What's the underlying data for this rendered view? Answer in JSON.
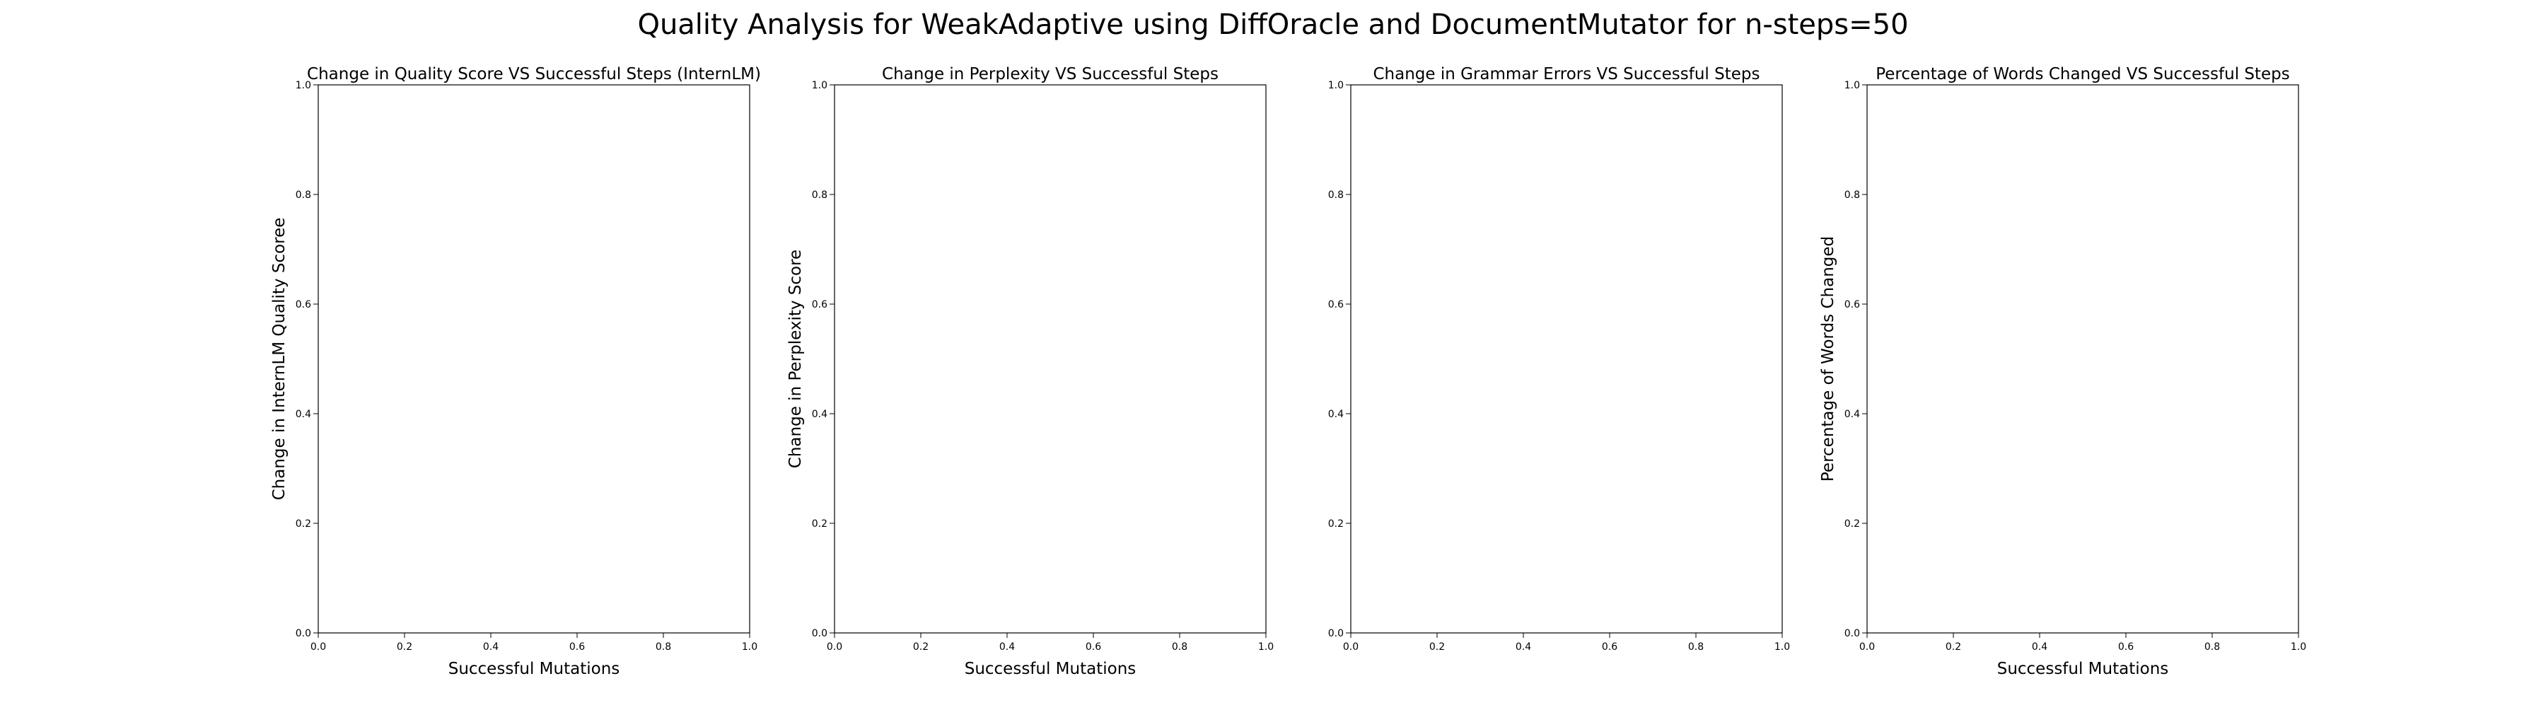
{
  "figure": {
    "suptitle": "Quality Analysis for WeakAdaptive using DiffOracle and DocumentMutator for n-steps=50"
  },
  "chart_data": [
    {
      "type": "scatter",
      "title": "Change in Quality Score VS Successful Steps (InternLM)",
      "xlabel": "Successful Mutations",
      "ylabel": "Change in InternLM Quality Scoree",
      "xlim": [
        0,
        1
      ],
      "ylim": [
        0,
        1
      ],
      "xticks": [
        "0.0",
        "0.2",
        "0.4",
        "0.6",
        "0.8",
        "1.0"
      ],
      "yticks": [
        "0.0",
        "0.2",
        "0.4",
        "0.6",
        "0.8",
        "1.0"
      ],
      "series": [],
      "grid": false
    },
    {
      "type": "scatter",
      "title": "Change in Perplexity VS Successful Steps",
      "xlabel": "Successful Mutations",
      "ylabel": "Change in Perplexity Score",
      "xlim": [
        0,
        1
      ],
      "ylim": [
        0,
        1
      ],
      "xticks": [
        "0.0",
        "0.2",
        "0.4",
        "0.6",
        "0.8",
        "1.0"
      ],
      "yticks": [
        "0.0",
        "0.2",
        "0.4",
        "0.6",
        "0.8",
        "1.0"
      ],
      "series": [],
      "grid": false
    },
    {
      "type": "scatter",
      "title": "Change in Grammar Errors VS Successful Steps",
      "xlabel": "",
      "ylabel": "",
      "xlim": [
        0,
        1
      ],
      "ylim": [
        0,
        1
      ],
      "xticks": [
        "0.0",
        "0.2",
        "0.4",
        "0.6",
        "0.8",
        "1.0"
      ],
      "yticks": [
        "0.0",
        "0.2",
        "0.4",
        "0.6",
        "0.8",
        "1.0"
      ],
      "series": [],
      "grid": false
    },
    {
      "type": "scatter",
      "title": "Percentage of Words Changed VS Successful Steps",
      "xlabel": "Successful Mutations",
      "ylabel": "Percentage of Words Changed",
      "xlim": [
        0,
        1
      ],
      "ylim": [
        0,
        1
      ],
      "xticks": [
        "0.0",
        "0.2",
        "0.4",
        "0.6",
        "0.8",
        "1.0"
      ],
      "yticks": [
        "0.0",
        "0.2",
        "0.4",
        "0.6",
        "0.8",
        "1.0"
      ],
      "series": [],
      "grid": false
    }
  ]
}
